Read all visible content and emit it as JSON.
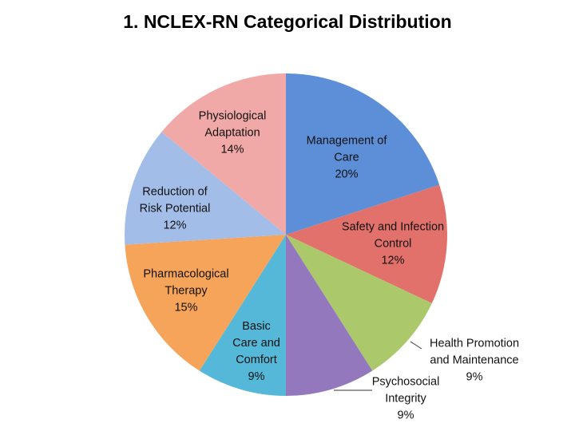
{
  "chart_data": {
    "type": "pie",
    "title": "1.  NCLEX-RN Categorical Distribution",
    "categories": [
      "Management of Care",
      "Safety and Infection Control",
      "Health Promotion and Maintenance",
      "Psychosocial Integrity",
      "Basic Care and Comfort",
      "Pharmacological Therapy",
      "Reduction of Risk Potential",
      "Physiological Adaptation"
    ],
    "values": [
      20,
      12,
      9,
      9,
      9,
      15,
      12,
      14
    ],
    "value_labels": [
      "20%",
      "12%",
      "9%",
      "9%",
      "9%",
      "15%",
      "12%",
      "14%"
    ],
    "colors": [
      "#5d8fd8",
      "#e2716c",
      "#abc96a",
      "#9478bd",
      "#55b8d8",
      "#f6a45a",
      "#a3bde9",
      "#f1a9a7"
    ]
  }
}
